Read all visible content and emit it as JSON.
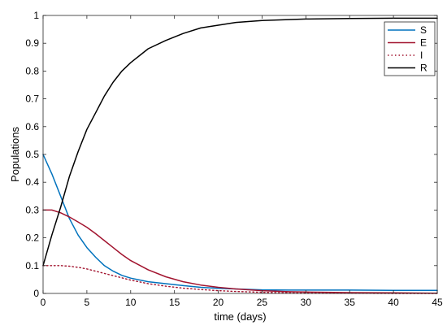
{
  "chart_data": {
    "type": "line",
    "title": "",
    "xlabel": "time (days)",
    "ylabel": "Populations",
    "xlim": [
      0,
      45
    ],
    "ylim": [
      0,
      1
    ],
    "x_ticks": [
      "0",
      "5",
      "10",
      "15",
      "20",
      "25",
      "30",
      "35",
      "40",
      "45"
    ],
    "y_ticks": [
      "0",
      "0.1",
      "0.2",
      "0.3",
      "0.4",
      "0.5",
      "0.6",
      "0.7",
      "0.8",
      "0.9",
      "1"
    ],
    "grid": false,
    "legend_position": "top-right",
    "x": [
      0,
      1,
      2,
      3,
      4,
      5,
      6,
      7,
      8,
      9,
      10,
      12,
      14,
      16,
      18,
      20,
      22,
      25,
      28,
      30,
      35,
      40,
      45
    ],
    "series": [
      {
        "name": "S",
        "color": "#0072BD",
        "style": "solid",
        "values": [
          0.5,
          0.43,
          0.35,
          0.27,
          0.21,
          0.165,
          0.13,
          0.1,
          0.08,
          0.065,
          0.055,
          0.042,
          0.035,
          0.028,
          0.022,
          0.018,
          0.016,
          0.013,
          0.012,
          0.012,
          0.012,
          0.011,
          0.011
        ]
      },
      {
        "name": "E",
        "color": "#A2142F",
        "style": "solid",
        "values": [
          0.3,
          0.3,
          0.29,
          0.275,
          0.257,
          0.238,
          0.215,
          0.19,
          0.165,
          0.14,
          0.118,
          0.085,
          0.06,
          0.042,
          0.03,
          0.022,
          0.016,
          0.01,
          0.006,
          0.005,
          0.003,
          0.002,
          0.001
        ]
      },
      {
        "name": "I",
        "color": "#A2142F",
        "style": "dotted",
        "values": [
          0.1,
          0.1,
          0.1,
          0.098,
          0.094,
          0.088,
          0.08,
          0.072,
          0.064,
          0.056,
          0.048,
          0.035,
          0.026,
          0.019,
          0.014,
          0.01,
          0.007,
          0.004,
          0.002,
          0.001,
          0.001,
          0.0,
          0.0
        ]
      },
      {
        "name": "R",
        "color": "#000000",
        "style": "solid",
        "values": [
          0.1,
          0.21,
          0.31,
          0.42,
          0.51,
          0.59,
          0.65,
          0.71,
          0.76,
          0.8,
          0.83,
          0.88,
          0.91,
          0.935,
          0.955,
          0.965,
          0.975,
          0.982,
          0.985,
          0.987,
          0.989,
          0.99,
          0.99
        ]
      }
    ]
  }
}
